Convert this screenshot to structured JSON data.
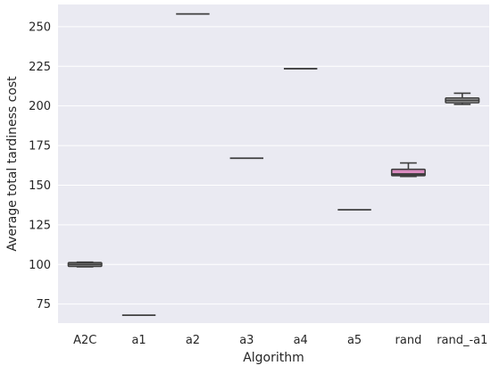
{
  "chart_data": {
    "type": "box",
    "xlabel": "Algorithm",
    "ylabel": "Average total tardiness cost",
    "categories": [
      "A2C",
      "a1",
      "a2",
      "a3",
      "a4",
      "a5",
      "rand",
      "rand_-a1"
    ],
    "ylim": [
      63,
      264
    ],
    "yticks": [
      75,
      100,
      125,
      150,
      175,
      200,
      225,
      250
    ],
    "grid": true,
    "colors": {
      "background": "#eaeaf2",
      "grid": "#ffffff",
      "box_edge": "#3f3f3f",
      "default_box": "#d2d2d6",
      "rand": "#d98bbf",
      "rand_-a1": "#bfbfbf"
    },
    "boxes": [
      {
        "category": "A2C",
        "whislo": 98.5,
        "q1": 98.8,
        "med": 100.0,
        "q3": 101.2,
        "whishi": 101.5
      },
      {
        "category": "a1",
        "whislo": 68.0,
        "q1": 68.0,
        "med": 68.0,
        "q3": 68.0,
        "whishi": 68.0
      },
      {
        "category": "a2",
        "whislo": 258.0,
        "q1": 258.0,
        "med": 258.0,
        "q3": 258.0,
        "whishi": 258.0
      },
      {
        "category": "a3",
        "whislo": 167.0,
        "q1": 167.0,
        "med": 167.0,
        "q3": 167.0,
        "whishi": 167.0
      },
      {
        "category": "a4",
        "whislo": 223.5,
        "q1": 223.5,
        "med": 223.5,
        "q3": 223.5,
        "whishi": 223.5
      },
      {
        "category": "a5",
        "whislo": 134.5,
        "q1": 134.5,
        "med": 134.5,
        "q3": 134.5,
        "whishi": 134.5
      },
      {
        "category": "rand",
        "whislo": 155.5,
        "q1": 156.0,
        "med": 157.0,
        "q3": 160.0,
        "whishi": 164.0
      },
      {
        "category": "rand_-a1",
        "whislo": 201.0,
        "q1": 202.0,
        "med": 203.5,
        "q3": 205.0,
        "whishi": 208.0
      }
    ]
  }
}
